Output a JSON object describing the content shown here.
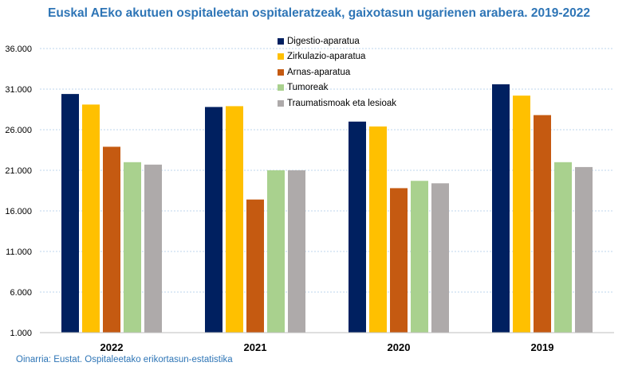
{
  "chart_data": {
    "type": "bar",
    "title": "Euskal AEko akutuen ospitaleetan ospitaleratzeak, gaixotasun ugarienen arabera. 2019-2022",
    "source": "Oinarria: Eustat. Ospitaleetako erikortasun-estatistika",
    "categories": [
      "2022",
      "2021",
      "2020",
      "2019"
    ],
    "series": [
      {
        "name": "Digestio-aparatua",
        "color": "#002060",
        "values": [
          30400,
          28800,
          27000,
          31600
        ]
      },
      {
        "name": "Zirkulazio-aparatua",
        "color": "#ffc000",
        "values": [
          29100,
          28900,
          26400,
          30200
        ]
      },
      {
        "name": "Arnas-aparatua",
        "color": "#c55a11",
        "values": [
          23900,
          17400,
          18800,
          27800
        ]
      },
      {
        "name": "Tumoreak",
        "color": "#a9d18e",
        "values": [
          22000,
          21000,
          19700,
          22000
        ]
      },
      {
        "name": "Traumatismoak eta lesioak",
        "color": "#aeaaaa",
        "values": [
          21700,
          21000,
          19400,
          21400
        ]
      }
    ],
    "ylim": [
      1000,
      36000
    ],
    "yticks": [
      1000,
      6000,
      11000,
      16000,
      21000,
      26000,
      31000,
      36000
    ],
    "ytick_labels": [
      "1.000",
      "6.000",
      "11.000",
      "16.000",
      "21.000",
      "26.000",
      "31.000",
      "36.000"
    ],
    "grid": true,
    "legend_position": "top-center",
    "xlabel": "",
    "ylabel": ""
  }
}
